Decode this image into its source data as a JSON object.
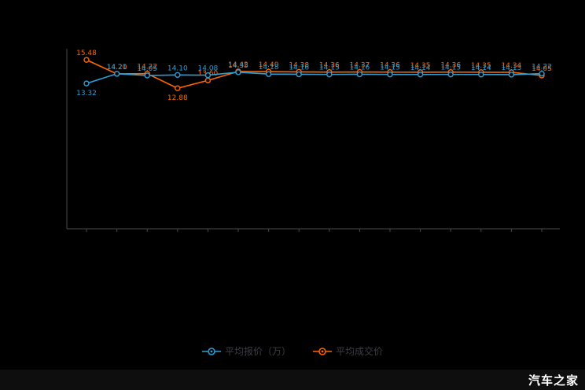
{
  "page": {
    "background": "#000000",
    "watermark": "汽车之家"
  },
  "chart_data": {
    "type": "line",
    "title": "",
    "xlabel": "",
    "ylabel": "",
    "x": [
      1,
      2,
      3,
      4,
      5,
      6,
      7,
      8,
      9,
      10,
      11,
      12,
      13,
      14,
      15,
      16
    ],
    "x_tick_labels_visible": false,
    "ylim": [
      0,
      16.5
    ],
    "grid": false,
    "legend_position": "bottom",
    "axis_color": "#4a4a4a",
    "series": [
      {
        "name": "平均报价（万）",
        "color": "#2e9fd6",
        "values": [
          13.32,
          14.21,
          14.05,
          14.1,
          14.08,
          14.35,
          14.18,
          14.16,
          14.15,
          14.16,
          14.15,
          14.14,
          14.15,
          14.14,
          14.13,
          14.22
        ]
      },
      {
        "name": "平均成交价",
        "color": "#ff6600",
        "values": [
          15.48,
          14.2,
          14.22,
          12.88,
          13.6,
          14.42,
          14.4,
          14.38,
          14.36,
          14.37,
          14.36,
          14.35,
          14.36,
          14.35,
          14.34,
          14.05
        ]
      }
    ]
  }
}
